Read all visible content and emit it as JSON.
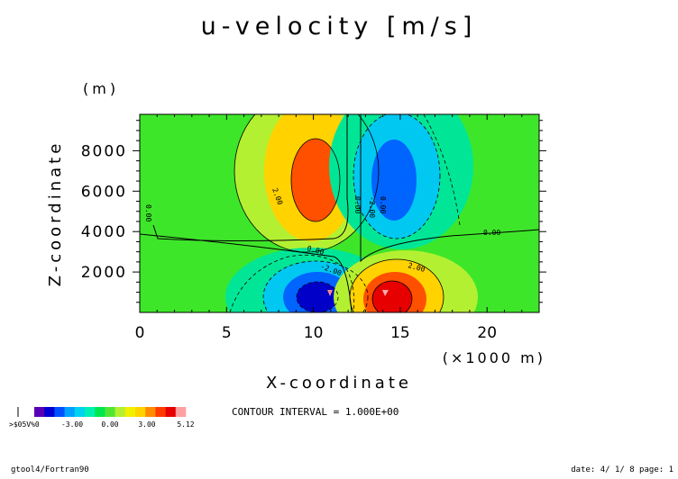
{
  "chart_data": {
    "type": "heatmap",
    "title": "u-velocity [m/s]",
    "xlabel": "X-coordinate",
    "x_unit_label": "(×1000 m)",
    "ylabel": "Z-coordinate",
    "y_unit_label": "(m)",
    "xlim": [
      0,
      23
    ],
    "ylim": [
      0,
      9800
    ],
    "x_ticks": [
      0,
      5,
      10,
      15,
      20
    ],
    "y_ticks": [
      2000,
      4000,
      6000,
      8000
    ],
    "contour_interval_text": "CONTOUR INTERVAL = 1.000E+00",
    "contour_labels": [
      "0.00",
      "2.00",
      "0.00",
      "-2.00",
      "0.00",
      "-2.00",
      "2.00",
      "0.00",
      "0.00"
    ],
    "colorbar": {
      "labels": [
        "-3.00",
        "0.00",
        "3.00",
        "5.12"
      ],
      "underflow_label": ">$05V%0",
      "colors": [
        "#5a00b4",
        "#0000d2",
        "#0050ff",
        "#00a0ff",
        "#00d2f0",
        "#00f0b4",
        "#00e650",
        "#50e632",
        "#b4f032",
        "#f0f000",
        "#ffd200",
        "#ff8c00",
        "#ff3c00",
        "#e60000",
        "#ffa0a0"
      ]
    },
    "field_features": [
      {
        "type": "positive_max",
        "x_km": 10.5,
        "z_m": 6500,
        "approx_value": 4.5
      },
      {
        "type": "negative_min",
        "x_km": 15.0,
        "z_m": 6500,
        "approx_value": -3.5
      },
      {
        "type": "negative_min",
        "x_km": 10.5,
        "z_m": 1000,
        "approx_value": -4.5
      },
      {
        "type": "positive_max",
        "x_km": 14.5,
        "z_m": 1000,
        "approx_value": 5.0
      }
    ]
  },
  "footer": {
    "left": "gtool4/Fortran90",
    "right": "date: 4/ 1/ 8 page: 1"
  }
}
